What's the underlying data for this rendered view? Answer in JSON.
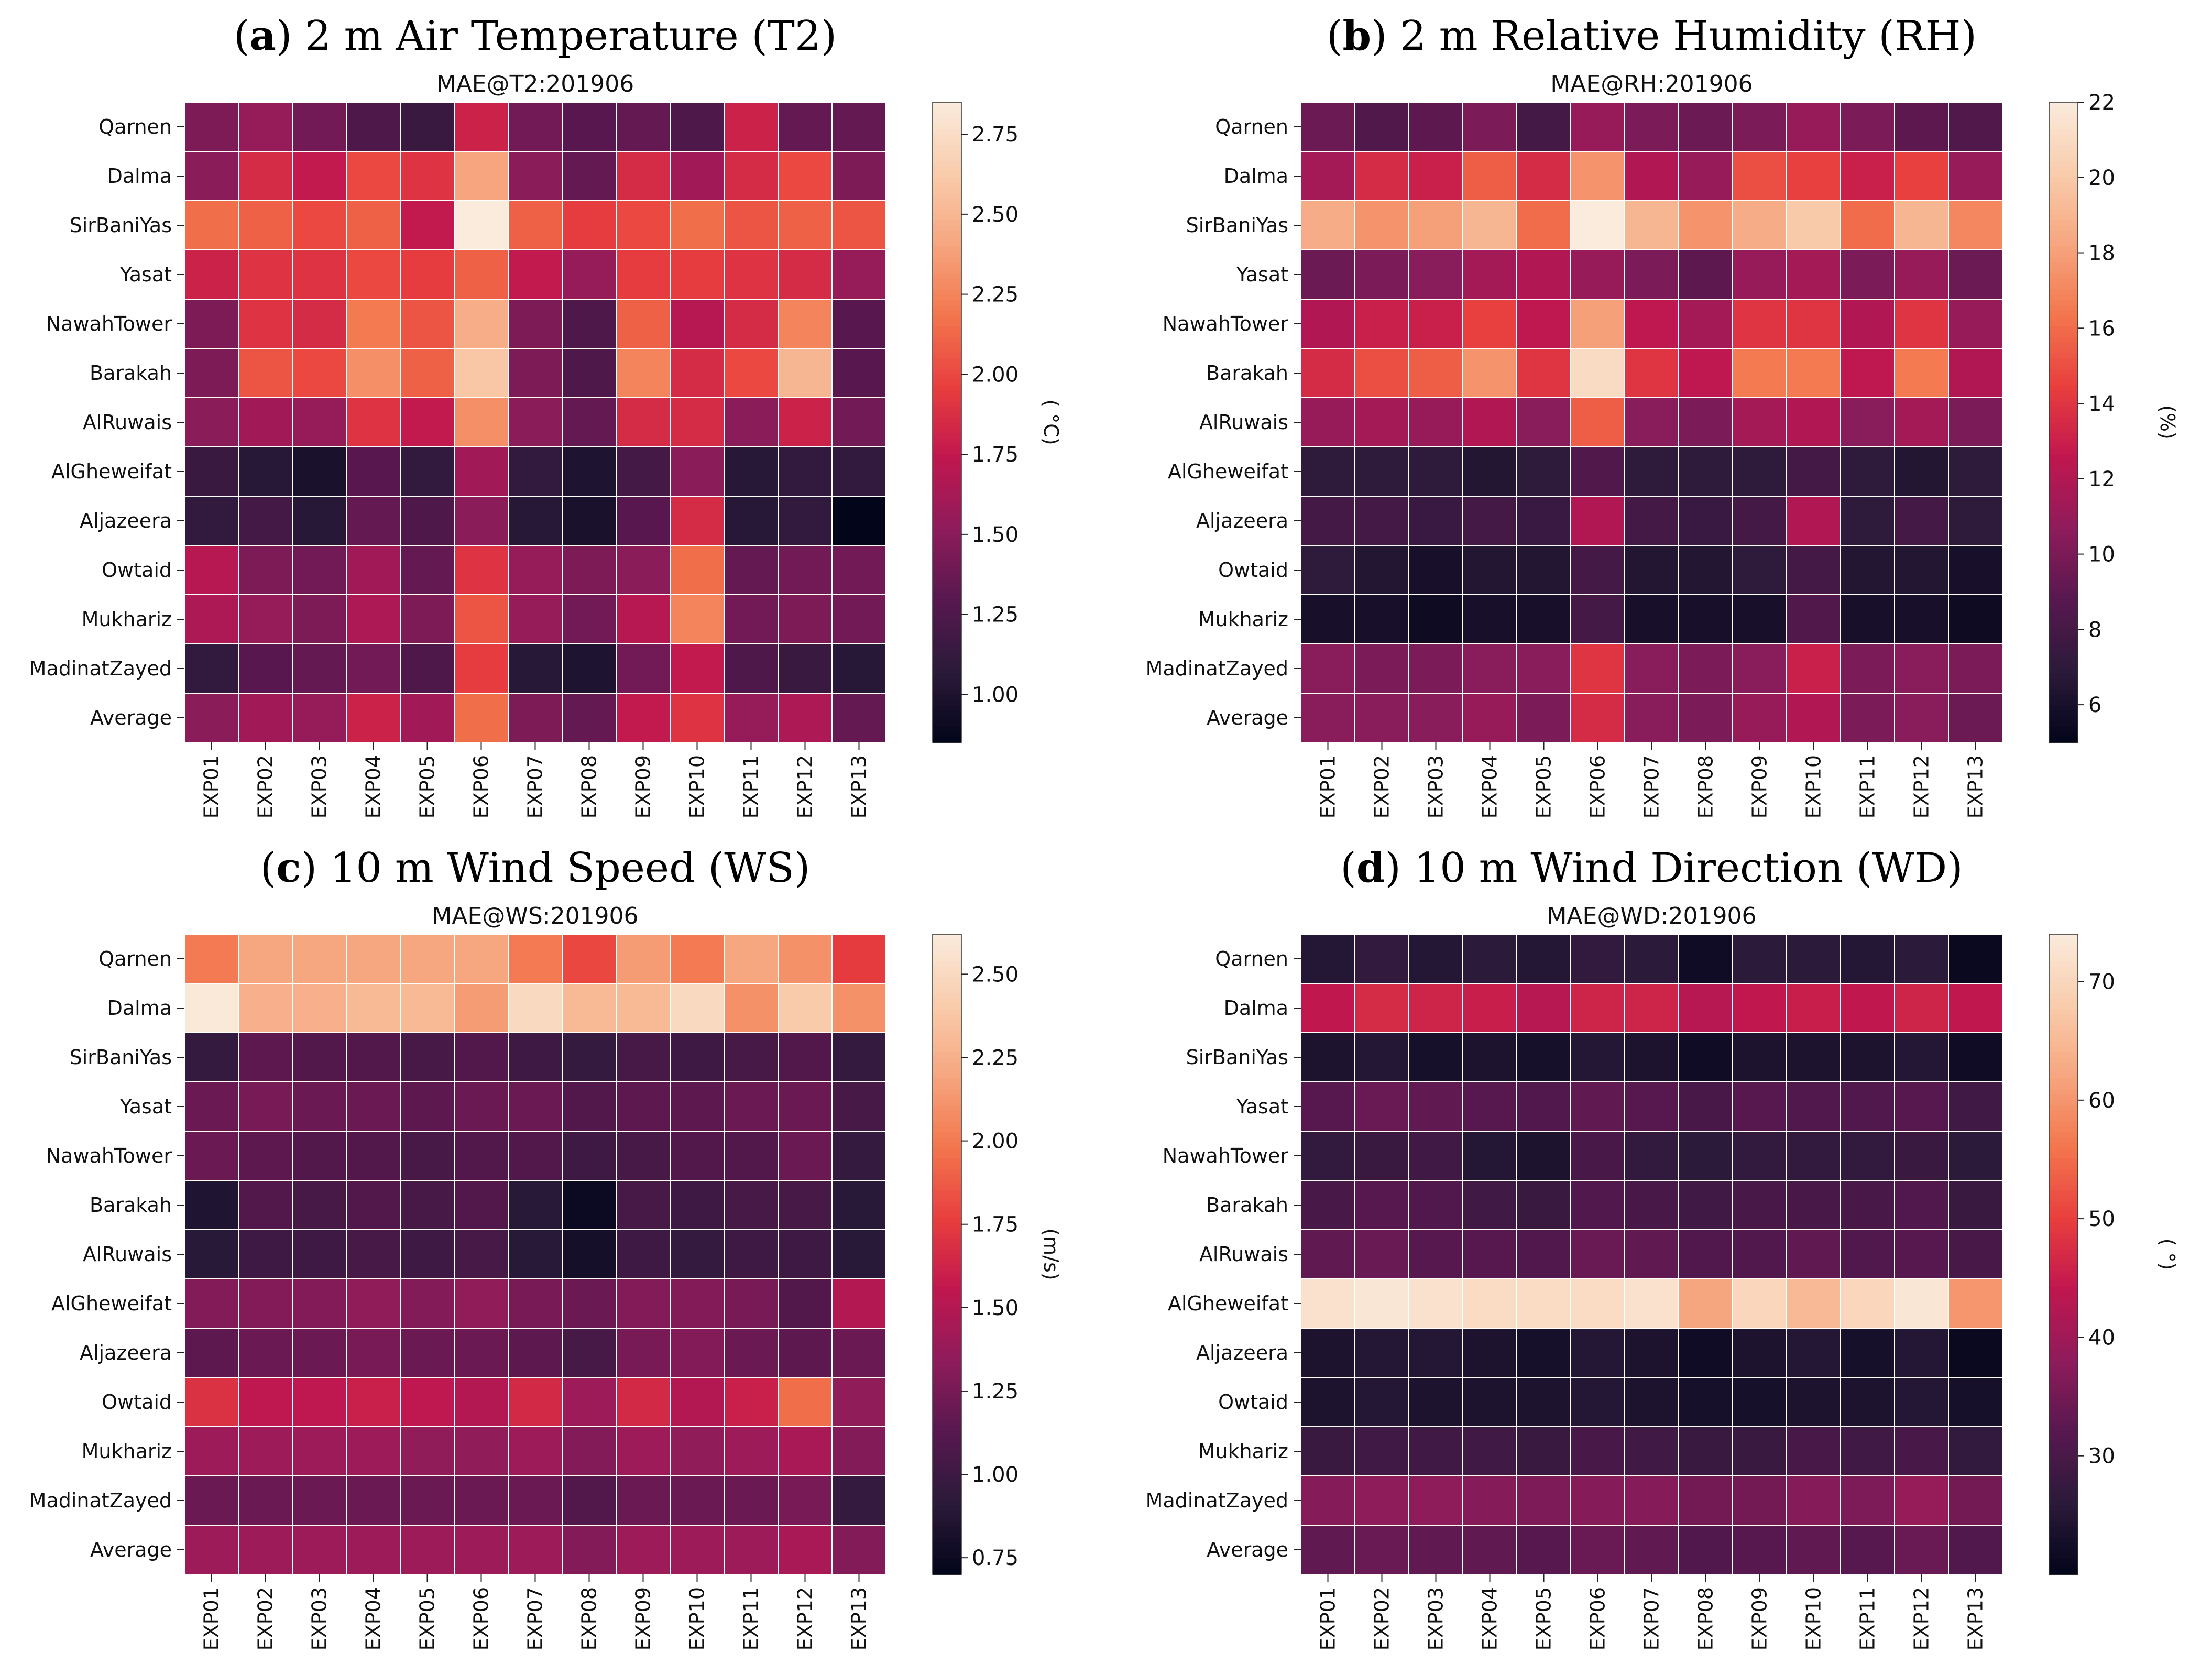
{
  "palette": [
    "#03051a",
    "#2b1a3a",
    "#57184f",
    "#8e1c5b",
    "#c0174f",
    "#e83e3e",
    "#f3764d",
    "#f6a67f",
    "#f9ccac",
    "#faebdd"
  ],
  "chart_data": [
    {
      "type": "heatmap",
      "panel_letter": "a",
      "panel_title_rest": ") 2 m Air Temperature (T2)",
      "title": "MAE@T2:201906",
      "rows": [
        "Qarnen",
        "Dalma",
        "SirBaniYas",
        "Yasat",
        "NawahTower",
        "Barakah",
        "AlRuwais",
        "AlGheweifat",
        "Aljazeera",
        "Owtaid",
        "Mukhariz",
        "MadinatZayed",
        "Average"
      ],
      "columns": [
        "EXP01",
        "EXP02",
        "EXP03",
        "EXP04",
        "EXP05",
        "EXP06",
        "EXP07",
        "EXP08",
        "EXP09",
        "EXP10",
        "EXP11",
        "EXP12",
        "EXP13"
      ],
      "values": [
        [
          1.45,
          1.55,
          1.4,
          1.25,
          1.15,
          1.8,
          1.4,
          1.3,
          1.35,
          1.25,
          1.8,
          1.35,
          1.35
        ],
        [
          1.5,
          1.85,
          1.75,
          2.0,
          1.9,
          2.4,
          1.5,
          1.35,
          1.85,
          1.6,
          1.85,
          2.0,
          1.45
        ],
        [
          2.15,
          2.1,
          2.0,
          2.1,
          1.75,
          2.85,
          2.1,
          1.95,
          2.0,
          2.15,
          2.05,
          2.1,
          2.05
        ],
        [
          1.8,
          1.9,
          1.9,
          2.0,
          1.95,
          2.1,
          1.75,
          1.55,
          1.95,
          1.95,
          1.9,
          1.85,
          1.55
        ],
        [
          1.45,
          1.9,
          1.85,
          2.2,
          2.05,
          2.45,
          1.45,
          1.25,
          2.1,
          1.7,
          1.85,
          2.25,
          1.3
        ],
        [
          1.45,
          2.05,
          2.0,
          2.3,
          2.1,
          2.6,
          1.45,
          1.25,
          2.25,
          1.85,
          2.0,
          2.5,
          1.3
        ],
        [
          1.5,
          1.6,
          1.55,
          1.9,
          1.75,
          2.3,
          1.5,
          1.35,
          1.85,
          1.85,
          1.5,
          1.8,
          1.4
        ],
        [
          1.15,
          1.05,
          0.98,
          1.3,
          1.1,
          1.6,
          1.1,
          1.0,
          1.2,
          1.5,
          1.05,
          1.1,
          1.1
        ],
        [
          1.1,
          1.2,
          1.05,
          1.35,
          1.25,
          1.5,
          1.05,
          0.98,
          1.3,
          1.85,
          1.05,
          1.1,
          0.85
        ],
        [
          1.7,
          1.45,
          1.4,
          1.6,
          1.35,
          1.9,
          1.55,
          1.45,
          1.5,
          2.15,
          1.35,
          1.4,
          1.4
        ],
        [
          1.65,
          1.55,
          1.45,
          1.65,
          1.45,
          2.05,
          1.55,
          1.4,
          1.7,
          2.25,
          1.4,
          1.45,
          1.4
        ],
        [
          1.1,
          1.3,
          1.35,
          1.4,
          1.25,
          1.95,
          1.05,
          1.0,
          1.4,
          1.75,
          1.25,
          1.15,
          1.05
        ],
        [
          1.5,
          1.6,
          1.55,
          1.8,
          1.6,
          2.15,
          1.45,
          1.35,
          1.75,
          1.9,
          1.55,
          1.65,
          1.35
        ]
      ],
      "zlim": [
        0.85,
        2.85
      ],
      "colorbar_ticks": [
        "1.00",
        "1.25",
        "1.50",
        "1.75",
        "2.00",
        "2.25",
        "2.50",
        "2.75"
      ],
      "colorbar_tick_values": [
        1.0,
        1.25,
        1.5,
        1.75,
        2.0,
        2.25,
        2.5,
        2.75
      ],
      "colorbar_label": "( °C)"
    },
    {
      "type": "heatmap",
      "panel_letter": "b",
      "panel_title_rest": ") 2 m Relative Humidity (RH)",
      "title": "MAE@RH:201906",
      "rows": [
        "Qarnen",
        "Dalma",
        "SirBaniYas",
        "Yasat",
        "NawahTower",
        "Barakah",
        "AlRuwais",
        "AlGheweifat",
        "Aljazeera",
        "Owtaid",
        "Mukhariz",
        "MadinatZayed",
        "Average"
      ],
      "columns": [
        "EXP01",
        "EXP02",
        "EXP03",
        "EXP04",
        "EXP05",
        "EXP06",
        "EXP07",
        "EXP08",
        "EXP09",
        "EXP10",
        "EXP11",
        "EXP12",
        "EXP13"
      ],
      "values": [
        [
          9.5,
          8.5,
          9.0,
          10.0,
          8.0,
          11.0,
          10.0,
          9.5,
          10.0,
          11.0,
          10.0,
          9.0,
          8.5
        ],
        [
          11.5,
          13.5,
          13.0,
          15.5,
          13.5,
          17.5,
          12.0,
          11.0,
          15.0,
          14.5,
          13.0,
          14.5,
          11.0
        ],
        [
          18.5,
          17.5,
          18.0,
          19.0,
          16.0,
          22.0,
          19.0,
          17.5,
          18.5,
          20.0,
          16.0,
          19.0,
          17.0
        ],
        [
          9.5,
          10.0,
          10.5,
          11.5,
          12.0,
          11.0,
          10.0,
          9.0,
          11.0,
          11.5,
          10.0,
          11.0,
          9.5
        ],
        [
          12.0,
          13.0,
          13.0,
          14.5,
          12.5,
          18.0,
          12.5,
          11.5,
          14.0,
          14.0,
          12.0,
          14.0,
          11.0
        ],
        [
          13.5,
          15.0,
          15.5,
          17.5,
          14.0,
          21.0,
          14.0,
          12.5,
          16.5,
          16.5,
          12.5,
          16.5,
          12.0
        ],
        [
          11.0,
          11.5,
          11.0,
          12.0,
          10.5,
          15.5,
          10.5,
          10.0,
          11.5,
          12.0,
          10.5,
          11.5,
          10.0
        ],
        [
          7.0,
          7.0,
          7.0,
          6.5,
          7.0,
          8.5,
          7.0,
          7.0,
          7.0,
          8.0,
          7.0,
          6.5,
          7.0
        ],
        [
          8.0,
          8.0,
          7.5,
          8.0,
          7.5,
          12.0,
          8.0,
          7.5,
          8.0,
          12.0,
          7.0,
          8.0,
          7.0
        ],
        [
          7.0,
          6.5,
          6.0,
          6.5,
          6.5,
          8.0,
          6.5,
          6.5,
          7.0,
          8.0,
          6.5,
          6.5,
          6.0
        ],
        [
          6.0,
          6.0,
          5.5,
          6.0,
          6.0,
          8.0,
          6.0,
          6.0,
          6.0,
          8.5,
          6.0,
          6.0,
          5.5
        ],
        [
          10.5,
          10.0,
          10.0,
          10.5,
          10.5,
          14.0,
          10.5,
          10.0,
          10.5,
          13.0,
          10.0,
          10.5,
          10.0
        ],
        [
          10.5,
          10.5,
          10.5,
          11.0,
          10.0,
          13.5,
          10.5,
          10.0,
          11.0,
          12.0,
          10.0,
          10.5,
          9.5
        ]
      ],
      "zlim": [
        5.0,
        22.0
      ],
      "colorbar_ticks": [
        "6",
        "8",
        "10",
        "12",
        "14",
        "16",
        "18",
        "20",
        "22"
      ],
      "colorbar_tick_values": [
        6,
        8,
        10,
        12,
        14,
        16,
        18,
        20,
        22
      ],
      "colorbar_label": "(%)"
    },
    {
      "type": "heatmap",
      "panel_letter": "c",
      "panel_title_rest": ") 10 m Wind Speed (WS)",
      "title": "MAE@WS:201906",
      "rows": [
        "Qarnen",
        "Dalma",
        "SirBaniYas",
        "Yasat",
        "NawahTower",
        "Barakah",
        "AlRuwais",
        "AlGheweifat",
        "Aljazeera",
        "Owtaid",
        "Mukhariz",
        "MadinatZayed",
        "Average"
      ],
      "columns": [
        "EXP01",
        "EXP02",
        "EXP03",
        "EXP04",
        "EXP05",
        "EXP06",
        "EXP07",
        "EXP08",
        "EXP09",
        "EXP10",
        "EXP11",
        "EXP12",
        "EXP13"
      ],
      "values": [
        [
          2.0,
          2.2,
          2.2,
          2.2,
          2.2,
          2.2,
          2.0,
          1.8,
          2.15,
          2.0,
          2.2,
          2.1,
          1.75
        ],
        [
          2.6,
          2.25,
          2.25,
          2.3,
          2.3,
          2.15,
          2.5,
          2.3,
          2.3,
          2.5,
          2.1,
          2.4,
          2.1
        ],
        [
          0.95,
          1.15,
          1.1,
          1.1,
          1.05,
          1.1,
          1.0,
          0.95,
          1.05,
          1.0,
          1.05,
          1.1,
          0.95
        ],
        [
          1.2,
          1.25,
          1.2,
          1.2,
          1.15,
          1.2,
          1.2,
          1.1,
          1.15,
          1.15,
          1.2,
          1.2,
          1.05
        ],
        [
          1.2,
          1.15,
          1.1,
          1.1,
          1.05,
          1.1,
          1.1,
          1.0,
          1.05,
          1.1,
          1.1,
          1.2,
          0.95
        ],
        [
          0.85,
          1.1,
          1.05,
          1.1,
          1.05,
          1.1,
          0.9,
          0.75,
          1.05,
          1.0,
          1.05,
          1.05,
          0.9
        ],
        [
          0.9,
          1.0,
          1.0,
          1.05,
          1.0,
          1.05,
          0.9,
          0.8,
          1.0,
          0.95,
          1.0,
          1.0,
          0.9
        ],
        [
          1.3,
          1.3,
          1.3,
          1.35,
          1.3,
          1.35,
          1.25,
          1.2,
          1.3,
          1.3,
          1.25,
          1.1,
          1.5
        ],
        [
          1.15,
          1.2,
          1.2,
          1.25,
          1.2,
          1.2,
          1.15,
          1.05,
          1.25,
          1.3,
          1.2,
          1.15,
          1.2
        ],
        [
          1.7,
          1.55,
          1.55,
          1.6,
          1.55,
          1.5,
          1.65,
          1.4,
          1.65,
          1.5,
          1.6,
          1.95,
          1.35
        ],
        [
          1.4,
          1.4,
          1.4,
          1.4,
          1.35,
          1.35,
          1.4,
          1.3,
          1.4,
          1.35,
          1.4,
          1.45,
          1.3
        ],
        [
          1.2,
          1.2,
          1.2,
          1.2,
          1.2,
          1.2,
          1.2,
          1.1,
          1.2,
          1.2,
          1.2,
          1.25,
          0.95
        ],
        [
          1.4,
          1.4,
          1.4,
          1.4,
          1.4,
          1.4,
          1.4,
          1.3,
          1.4,
          1.4,
          1.4,
          1.45,
          1.3
        ]
      ],
      "zlim": [
        0.7,
        2.62
      ],
      "colorbar_ticks": [
        "0.75",
        "1.00",
        "1.25",
        "1.50",
        "1.75",
        "2.00",
        "2.25",
        "2.50"
      ],
      "colorbar_tick_values": [
        0.75,
        1.0,
        1.25,
        1.5,
        1.75,
        2.0,
        2.25,
        2.5
      ],
      "colorbar_label": "(m/s)"
    },
    {
      "type": "heatmap",
      "panel_letter": "d",
      "panel_title_rest": ") 10 m Wind Direction (WD)",
      "title": "MAE@WD:201906",
      "rows": [
        "Qarnen",
        "Dalma",
        "SirBaniYas",
        "Yasat",
        "NawahTower",
        "Barakah",
        "AlRuwais",
        "AlGheweifat",
        "Aljazeera",
        "Owtaid",
        "Mukhariz",
        "MadinatZayed",
        "Average"
      ],
      "columns": [
        "EXP01",
        "EXP02",
        "EXP03",
        "EXP04",
        "EXP05",
        "EXP06",
        "EXP07",
        "EXP08",
        "EXP09",
        "EXP10",
        "EXP11",
        "EXP12",
        "EXP13"
      ],
      "values": [
        [
          25,
          27,
          25,
          26,
          25,
          27,
          26,
          22,
          26,
          26,
          25,
          26,
          21
        ],
        [
          44,
          47,
          46,
          45,
          43,
          46,
          46,
          43,
          44,
          45,
          44,
          46,
          44
        ],
        [
          24,
          25,
          23,
          24,
          23,
          25,
          24,
          22,
          24,
          24,
          24,
          25,
          22
        ],
        [
          32,
          34,
          33,
          32,
          31,
          33,
          32,
          30,
          32,
          31,
          31,
          32,
          29
        ],
        [
          27,
          28,
          29,
          25,
          24,
          30,
          27,
          26,
          27,
          27,
          27,
          28,
          26
        ],
        [
          30,
          32,
          31,
          29,
          28,
          31,
          30,
          29,
          30,
          30,
          30,
          31,
          28
        ],
        [
          33,
          34,
          32,
          32,
          31,
          34,
          33,
          31,
          31,
          33,
          31,
          32,
          30
        ],
        [
          72,
          73,
          72,
          71,
          71,
          71,
          72,
          62,
          70,
          65,
          70,
          73,
          60
        ],
        [
          24,
          25,
          25,
          24,
          23,
          25,
          24,
          22,
          24,
          25,
          23,
          25,
          21
        ],
        [
          24,
          25,
          24,
          24,
          24,
          25,
          24,
          23,
          23,
          24,
          24,
          25,
          23
        ],
        [
          28,
          29,
          29,
          29,
          28,
          30,
          29,
          28,
          28,
          30,
          29,
          30,
          27
        ],
        [
          37,
          38,
          38,
          37,
          36,
          37,
          37,
          35,
          35,
          37,
          36,
          39,
          35
        ],
        [
          33,
          34,
          33,
          33,
          32,
          34,
          33,
          31,
          32,
          33,
          32,
          34,
          31
        ]
      ],
      "zlim": [
        20.0,
        74.0
      ],
      "colorbar_ticks": [
        "30",
        "40",
        "50",
        "60",
        "70"
      ],
      "colorbar_tick_values": [
        30,
        40,
        50,
        60,
        70
      ],
      "colorbar_label": "( °)"
    }
  ]
}
